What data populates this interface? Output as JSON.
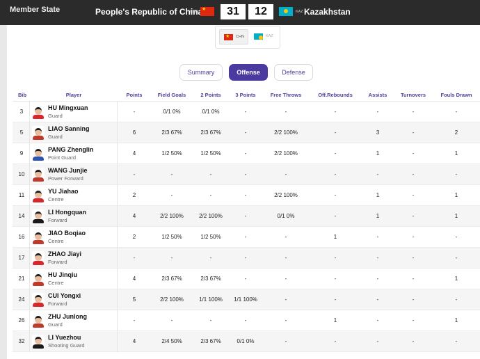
{
  "header": {
    "section_label": "Member State",
    "team_a": {
      "name": "People's Republic of China",
      "code": "CHN",
      "score": "31"
    },
    "team_b": {
      "name": "Kazakhstan",
      "code": "KAZ",
      "score": "12"
    }
  },
  "team_switcher": {
    "active": "CHN",
    "inactive": "KAZ"
  },
  "tabs": [
    {
      "label": "Summary",
      "active": false
    },
    {
      "label": "Offense",
      "active": true
    },
    {
      "label": "Defense",
      "active": false
    }
  ],
  "columns": [
    "Bib",
    "Player",
    "Points",
    "Field Goals",
    "2 Points",
    "3 Points",
    "Free Throws",
    "Off.Rebounds",
    "Assists",
    "Turnovers",
    "Fouls Drawn"
  ],
  "players": [
    {
      "bib": "3",
      "name": "HU Mingxuan",
      "position": "Guard",
      "points": "-",
      "fg": "0/1 0%",
      "two": "0/1 0%",
      "three": "-",
      "ft": "-",
      "oreb": "-",
      "ast": "-",
      "tov": "-",
      "fd": "-"
    },
    {
      "bib": "5",
      "name": "LIAO Sanning",
      "position": "Guard",
      "points": "6",
      "fg": "2/3 67%",
      "two": "2/3 67%",
      "three": "-",
      "ft": "2/2 100%",
      "oreb": "-",
      "ast": "3",
      "tov": "-",
      "fd": "2"
    },
    {
      "bib": "9",
      "name": "PANG Zhenglin",
      "position": "Point Guard",
      "points": "4",
      "fg": "1/2 50%",
      "two": "1/2 50%",
      "three": "-",
      "ft": "2/2 100%",
      "oreb": "-",
      "ast": "1",
      "tov": "-",
      "fd": "1"
    },
    {
      "bib": "10",
      "name": "WANG Junjie",
      "position": "Power Forward",
      "points": "-",
      "fg": "-",
      "two": "-",
      "three": "-",
      "ft": "-",
      "oreb": "-",
      "ast": "-",
      "tov": "-",
      "fd": "-"
    },
    {
      "bib": "11",
      "name": "YU Jiahao",
      "position": "Centre",
      "points": "2",
      "fg": "-",
      "two": "-",
      "three": "-",
      "ft": "2/2 100%",
      "oreb": "-",
      "ast": "1",
      "tov": "-",
      "fd": "1"
    },
    {
      "bib": "14",
      "name": "LI Hongquan",
      "position": "Forward",
      "points": "4",
      "fg": "2/2 100%",
      "two": "2/2 100%",
      "three": "-",
      "ft": "0/1 0%",
      "oreb": "-",
      "ast": "1",
      "tov": "-",
      "fd": "1"
    },
    {
      "bib": "16",
      "name": "JIAO Boqiao",
      "position": "Centre",
      "points": "2",
      "fg": "1/2 50%",
      "two": "1/2 50%",
      "three": "-",
      "ft": "-",
      "oreb": "1",
      "ast": "-",
      "tov": "-",
      "fd": "-"
    },
    {
      "bib": "17",
      "name": "ZHAO Jiayi",
      "position": "Forward",
      "points": "-",
      "fg": "-",
      "two": "-",
      "three": "-",
      "ft": "-",
      "oreb": "-",
      "ast": "-",
      "tov": "-",
      "fd": "-"
    },
    {
      "bib": "21",
      "name": "HU Jinqiu",
      "position": "Centre",
      "points": "4",
      "fg": "2/3 67%",
      "two": "2/3 67%",
      "three": "-",
      "ft": "-",
      "oreb": "-",
      "ast": "-",
      "tov": "-",
      "fd": "1"
    },
    {
      "bib": "24",
      "name": "CUI Yongxi",
      "position": "Forward",
      "points": "5",
      "fg": "2/2 100%",
      "two": "1/1 100%",
      "three": "1/1 100%",
      "ft": "-",
      "oreb": "-",
      "ast": "-",
      "tov": "-",
      "fd": "-"
    },
    {
      "bib": "26",
      "name": "ZHU Junlong",
      "position": "Guard",
      "points": "-",
      "fg": "-",
      "two": "-",
      "three": "-",
      "ft": "-",
      "oreb": "1",
      "ast": "-",
      "tov": "-",
      "fd": "1"
    },
    {
      "bib": "32",
      "name": "LI Yuezhou",
      "position": "Shooting Guard",
      "points": "4",
      "fg": "2/4 50%",
      "two": "2/3 67%",
      "three": "0/1 0%",
      "ft": "-",
      "oreb": "-",
      "ast": "-",
      "tov": "-",
      "fd": "-"
    }
  ],
  "colors": {
    "accent": "#4b3aa0",
    "header_bg": "#2b2b2b",
    "flag_chn": "#de2910",
    "flag_kaz": "#00afca"
  }
}
